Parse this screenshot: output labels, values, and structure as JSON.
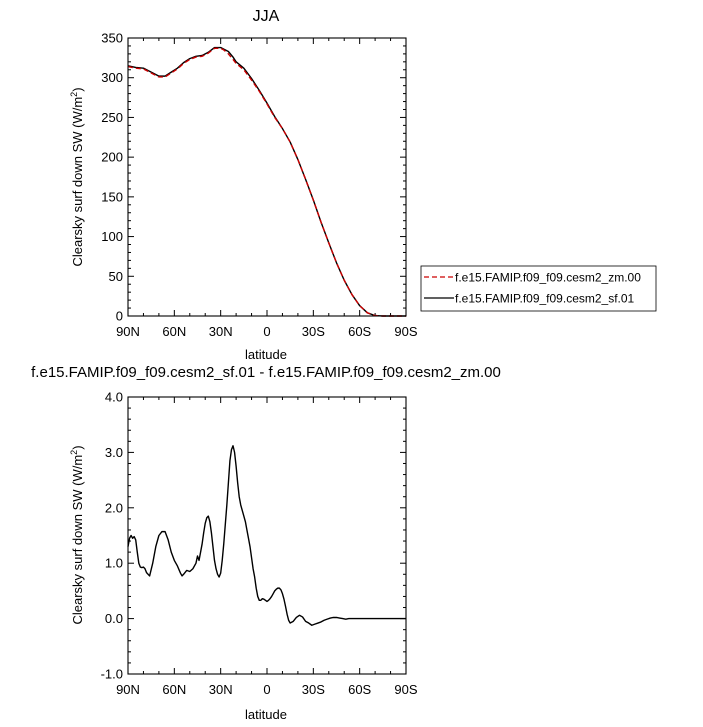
{
  "chart_data": [
    {
      "type": "line",
      "title": "JJA",
      "xlabel": "latitude",
      "ylabel_main": "Clearsky surf down SW (W/m",
      "ylabel_sup": "2",
      "ylabel_tail": ")",
      "xlim": [
        90,
        -90
      ],
      "ylim": [
        0,
        350
      ],
      "xticks": [
        90,
        60,
        30,
        0,
        -30,
        -60,
        -90
      ],
      "xtick_labels": [
        "90N",
        "60N",
        "30N",
        "0",
        "30S",
        "60S",
        "90S"
      ],
      "yticks": [
        0,
        50,
        100,
        150,
        200,
        250,
        300,
        350
      ],
      "ytick_labels": [
        "0",
        "50",
        "100",
        "150",
        "200",
        "250",
        "300",
        "350"
      ],
      "legend_position": "right",
      "series": [
        {
          "name": "f.e15.FAMIP.f09_f09.cesm2_zm.00",
          "color": "#cc0000",
          "dash": "dashed",
          "x": [
            90,
            85,
            80,
            75,
            70,
            66,
            62,
            58,
            54,
            50,
            46,
            42,
            38,
            34,
            32,
            30,
            28,
            25,
            22,
            20,
            15,
            10,
            5,
            0,
            -5,
            -10,
            -15,
            -20,
            -25,
            -30,
            -35,
            -40,
            -45,
            -50,
            -55,
            -60,
            -65,
            -70,
            -75,
            -80,
            -85,
            -90
          ],
          "values": [
            314,
            312,
            311,
            306,
            301,
            301,
            306,
            311,
            318,
            323,
            326,
            327,
            331,
            337,
            337,
            337,
            335,
            330,
            323,
            318,
            310,
            297,
            283,
            267,
            250,
            236,
            219,
            197,
            172,
            146,
            118,
            92,
            67,
            45,
            27,
            13,
            4,
            0.5,
            0,
            0,
            0,
            0
          ]
        },
        {
          "name": "f.e15.FAMIP.f09_f09.cesm2_sf.01",
          "color": "#000000",
          "dash": "solid",
          "x": [
            90,
            85,
            80,
            75,
            70,
            66,
            62,
            58,
            54,
            50,
            46,
            42,
            38,
            34,
            32,
            30,
            28,
            25,
            22,
            20,
            15,
            10,
            5,
            0,
            -5,
            -10,
            -15,
            -20,
            -25,
            -30,
            -35,
            -40,
            -45,
            -50,
            -55,
            -60,
            -65,
            -70,
            -75,
            -80,
            -85,
            -90
          ],
          "values": [
            315,
            313,
            312,
            307,
            302,
            302,
            307,
            312,
            319,
            324,
            327,
            328,
            332,
            338,
            338,
            338,
            336,
            333,
            326,
            320,
            312,
            299,
            284,
            268,
            251,
            236,
            219,
            197,
            172,
            146,
            118,
            92,
            67,
            45,
            27,
            13,
            4,
            0.5,
            0,
            0,
            0,
            0
          ]
        }
      ]
    },
    {
      "type": "line",
      "title": "f.e15.FAMIP.f09_f09.cesm2_sf.01 - f.e15.FAMIP.f09_f09.cesm2_zm.00",
      "xlabel": "latitude",
      "ylabel_main": "Clearsky surf down SW (W/m",
      "ylabel_sup": "2",
      "ylabel_tail": ")",
      "xlim": [
        90,
        -90
      ],
      "ylim": [
        -1.0,
        4.0
      ],
      "xticks": [
        90,
        60,
        30,
        0,
        -30,
        -60,
        -90
      ],
      "xtick_labels": [
        "90N",
        "60N",
        "30N",
        "0",
        "30S",
        "60S",
        "90S"
      ],
      "yticks": [
        -1.0,
        0.0,
        1.0,
        2.0,
        3.0,
        4.0
      ],
      "ytick_labels": [
        "-1.0",
        "0.0",
        "1.0",
        "2.0",
        "3.0",
        "4.0"
      ],
      "series": [
        {
          "color": "#000000",
          "dash": "solid",
          "x": [
            90,
            89,
            88,
            87,
            86,
            85,
            84,
            83,
            82,
            81,
            80,
            79,
            78,
            76,
            74,
            72,
            70,
            68,
            66,
            64,
            62,
            60,
            58,
            56,
            55,
            54,
            52,
            50,
            48,
            46,
            45,
            44,
            43,
            42,
            41,
            40,
            39,
            38,
            37,
            36,
            35,
            34,
            33,
            32,
            31,
            30,
            29,
            28,
            27,
            26,
            25,
            24,
            23,
            22,
            21,
            20,
            19,
            18,
            17,
            16,
            15,
            14,
            13,
            12,
            11,
            10,
            9,
            8,
            7,
            6,
            5,
            4,
            3,
            2,
            1,
            0,
            -1,
            -2,
            -3,
            -4,
            -5,
            -6,
            -7,
            -8,
            -9,
            -10,
            -11,
            -12,
            -13,
            -14,
            -15,
            -17,
            -19,
            -21,
            -23,
            -25,
            -27,
            -29,
            -31,
            -33,
            -35,
            -37,
            -39,
            -41,
            -43,
            -45,
            -47,
            -49,
            -51,
            -53,
            -55,
            -58,
            -61,
            -64,
            -67,
            -70,
            -75,
            -80,
            -85,
            -90
          ],
          "values": [
            1.3,
            1.45,
            1.5,
            1.45,
            1.48,
            1.42,
            1.2,
            1.0,
            0.93,
            0.92,
            0.93,
            0.9,
            0.83,
            0.77,
            1.0,
            1.3,
            1.5,
            1.57,
            1.57,
            1.42,
            1.2,
            1.05,
            0.95,
            0.82,
            0.77,
            0.8,
            0.87,
            0.85,
            0.9,
            1.0,
            1.13,
            1.05,
            1.2,
            1.35,
            1.55,
            1.72,
            1.82,
            1.85,
            1.75,
            1.55,
            1.3,
            1.05,
            0.9,
            0.8,
            0.75,
            0.82,
            1.05,
            1.35,
            1.7,
            2.05,
            2.45,
            2.85,
            3.05,
            3.12,
            3.0,
            2.75,
            2.45,
            2.2,
            2.05,
            1.95,
            1.85,
            1.75,
            1.6,
            1.45,
            1.3,
            1.1,
            0.9,
            0.75,
            0.55,
            0.4,
            0.33,
            0.33,
            0.36,
            0.35,
            0.33,
            0.31,
            0.33,
            0.36,
            0.4,
            0.45,
            0.5,
            0.53,
            0.55,
            0.55,
            0.52,
            0.45,
            0.35,
            0.22,
            0.08,
            -0.03,
            -0.08,
            -0.05,
            0.02,
            0.06,
            0.03,
            -0.05,
            -0.08,
            -0.12,
            -0.1,
            -0.08,
            -0.06,
            -0.03,
            -0.01,
            0.01,
            0.02,
            0.02,
            0.01,
            0.0,
            -0.01,
            0.0,
            0.0,
            0.0,
            0.0,
            0.0,
            0.0,
            0.0,
            0.0,
            0.0,
            0.0,
            0.0
          ]
        }
      ]
    }
  ]
}
